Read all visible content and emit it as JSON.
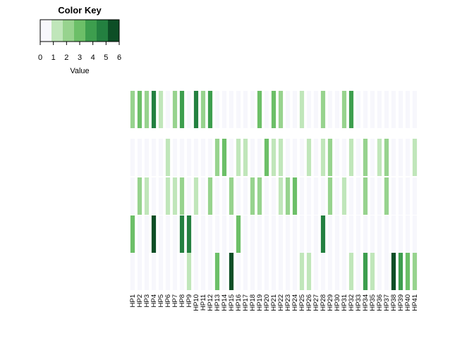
{
  "chart_data": {
    "type": "heatmap",
    "color_key": {
      "title": "Color Key",
      "xlabel": "Value",
      "ticks": [
        "0",
        "1",
        "2",
        "3",
        "4",
        "5",
        "6"
      ],
      "range": [
        0,
        6
      ],
      "colors": [
        "#f7f7fc",
        "#c0e6ba",
        "#97d38e",
        "#6cbf68",
        "#3d9e4e",
        "#238040",
        "#0d4e26"
      ]
    },
    "columns": [
      "HP1",
      "HP2",
      "HP3",
      "HP4",
      "HP5",
      "HP6",
      "HP7",
      "HP8",
      "HP9",
      "HP10",
      "HP11",
      "HP12",
      "HP13",
      "HP14",
      "HP15",
      "HP16",
      "HP17",
      "HP18",
      "HP19",
      "HP20",
      "HP21",
      "HP22",
      "HP23",
      "HP24",
      "HP25",
      "HP26",
      "HP27",
      "HP28",
      "HP29",
      "HP30",
      "HP31",
      "HP32",
      "HP33",
      "HP34",
      "HP35",
      "HP36",
      "HP37",
      "HP38",
      "HP39",
      "HP40",
      "HP41"
    ],
    "values": [
      [
        2,
        3,
        2,
        5,
        1,
        0,
        2,
        4,
        0,
        5,
        2,
        4,
        0,
        0,
        0,
        0,
        0,
        0,
        3,
        0,
        3,
        2,
        0,
        0,
        1,
        0,
        0,
        2,
        0,
        0,
        2,
        4,
        0,
        0,
        0,
        0,
        0,
        0,
        0,
        0,
        0
      ],
      [
        0,
        0,
        0,
        0,
        0,
        1,
        0,
        0,
        0,
        0,
        0,
        0,
        2,
        3,
        0,
        1,
        1,
        0,
        0,
        3,
        1,
        1,
        0,
        0,
        0,
        1,
        0,
        1,
        2,
        0,
        0,
        1,
        0,
        2,
        0,
        1,
        2,
        0,
        0,
        0,
        1
      ],
      [
        0,
        2,
        1,
        0,
        0,
        1,
        1,
        2,
        0,
        1,
        0,
        2,
        0,
        0,
        2,
        0,
        0,
        2,
        2,
        0,
        0,
        1,
        2,
        3,
        0,
        0,
        0,
        0,
        2,
        0,
        1,
        0,
        0,
        2,
        0,
        0,
        2,
        0,
        0,
        0,
        0
      ],
      [
        3,
        0,
        0,
        6,
        0,
        0,
        0,
        5,
        5,
        0,
        0,
        0,
        0,
        0,
        0,
        3,
        0,
        0,
        0,
        0,
        0,
        0,
        0,
        0,
        0,
        0,
        0,
        5,
        0,
        0,
        0,
        0,
        0,
        0,
        0,
        0,
        0,
        0,
        0,
        0,
        0
      ],
      [
        0,
        0,
        0,
        0,
        0,
        0,
        0,
        0,
        1,
        0,
        0,
        0,
        3,
        0,
        6,
        0,
        0,
        0,
        0,
        0,
        0,
        0,
        0,
        0,
        1,
        1,
        0,
        0,
        0,
        0,
        0,
        1,
        0,
        4,
        1,
        0,
        0,
        6,
        4,
        3,
        2
      ]
    ]
  }
}
